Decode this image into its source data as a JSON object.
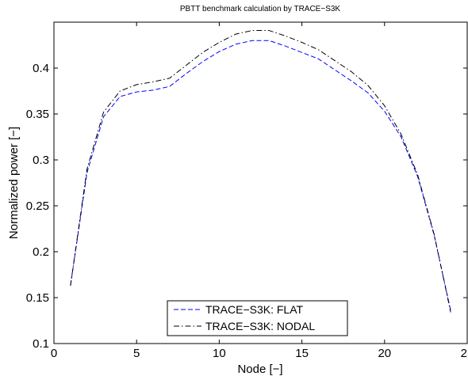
{
  "chart_data": {
    "type": "line",
    "title": "PBTT benchmark calculation by TRACE−S3K",
    "xlabel": "Node [−]",
    "ylabel": "Normalized power [−]",
    "xlim": [
      0,
      25
    ],
    "ylim": [
      0.1,
      0.45
    ],
    "x_ticks": [
      0,
      5,
      10,
      15,
      20,
      25
    ],
    "y_ticks": [
      0.1,
      0.15,
      0.2,
      0.25,
      0.3,
      0.35,
      0.4
    ],
    "x_tick_labels": [
      "0",
      "5",
      "10",
      "15",
      "20",
      "25"
    ],
    "y_tick_labels": [
      "0.1",
      "0.15",
      "0.2",
      "0.25",
      "0.3",
      "0.35",
      "0.4"
    ],
    "grid": false,
    "legend_position": "bottom-center",
    "x": [
      1,
      2,
      3,
      4,
      5,
      6,
      7,
      8,
      9,
      10,
      11,
      12,
      13,
      14,
      15,
      16,
      17,
      18,
      19,
      20,
      21,
      22,
      23,
      24
    ],
    "series": [
      {
        "name": "TRACE−S3K: FLAT",
        "color": "#0000ff",
        "dash": "dashed",
        "values": [
          0.163,
          0.286,
          0.347,
          0.369,
          0.374,
          0.376,
          0.38,
          0.394,
          0.407,
          0.418,
          0.426,
          0.43,
          0.43,
          0.424,
          0.417,
          0.41,
          0.398,
          0.386,
          0.373,
          0.353,
          0.325,
          0.282,
          0.218,
          0.136
        ]
      },
      {
        "name": "TRACE−S3K: NODAL",
        "color": "#000000",
        "dash": "dashdot",
        "values": [
          0.163,
          0.29,
          0.352,
          0.375,
          0.382,
          0.385,
          0.389,
          0.403,
          0.417,
          0.428,
          0.437,
          0.441,
          0.441,
          0.435,
          0.428,
          0.42,
          0.408,
          0.396,
          0.381,
          0.359,
          0.328,
          0.284,
          0.219,
          0.134
        ]
      }
    ]
  }
}
